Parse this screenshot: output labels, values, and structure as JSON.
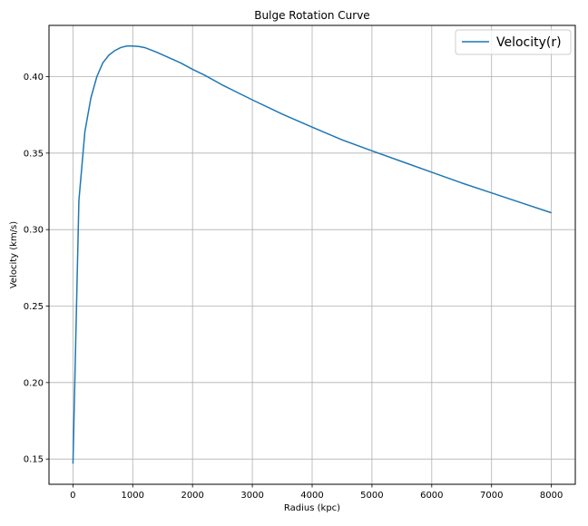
{
  "chart_data": {
    "type": "line",
    "title": "Bulge Rotation Curve",
    "xlabel": "Radius (kpc)",
    "ylabel": "Velocity (km/s)",
    "xlim": [
      -400,
      8400
    ],
    "ylim": [
      0.1335,
      0.4335
    ],
    "xticks": [
      0,
      1000,
      2000,
      3000,
      4000,
      5000,
      6000,
      7000,
      8000
    ],
    "yticks": [
      0.15,
      0.2,
      0.25,
      0.3,
      0.35,
      0.4
    ],
    "xtick_labels": [
      "0",
      "1000",
      "2000",
      "3000",
      "4000",
      "5000",
      "6000",
      "7000",
      "8000"
    ],
    "ytick_labels": [
      "0.15",
      "0.20",
      "0.25",
      "0.30",
      "0.35",
      "0.40"
    ],
    "grid": true,
    "legend_position": "top-right",
    "series": [
      {
        "name": "Velocity(r)",
        "color": "#1f77b4",
        "x": [
          1,
          100,
          200,
          300,
          400,
          500,
          600,
          700,
          800,
          900,
          1000,
          1100,
          1200,
          1400,
          1600,
          1800,
          2000,
          2200,
          2500,
          3000,
          3500,
          4000,
          4500,
          5000,
          5500,
          6000,
          6500,
          7000,
          7500,
          8000
        ],
        "y": [
          0.147,
          0.319,
          0.364,
          0.386,
          0.4,
          0.409,
          0.414,
          0.417,
          0.419,
          0.42,
          0.42,
          0.4197,
          0.419,
          0.416,
          0.4125,
          0.409,
          0.4048,
          0.401,
          0.3945,
          0.3848,
          0.3755,
          0.367,
          0.3587,
          0.3515,
          0.3445,
          0.3375,
          0.3305,
          0.324,
          0.3175,
          0.311
        ]
      }
    ]
  }
}
